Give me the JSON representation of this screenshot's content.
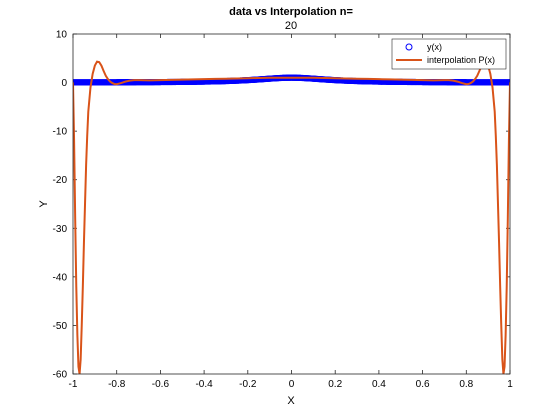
{
  "chart_data": {
    "type": "line",
    "title": "data vs Interpolation n=",
    "subtitle": "20",
    "xlabel": "X",
    "ylabel": "Y",
    "xlim": [
      -1,
      1
    ],
    "ylim": [
      -60,
      10
    ],
    "xticks": [
      "-1",
      "-0.8",
      "-0.6",
      "-0.4",
      "-0.2",
      "0",
      "0.2",
      "0.4",
      "0.6",
      "0.8",
      "1"
    ],
    "yticks": [
      "10",
      "0",
      "-10",
      "-20",
      "-30",
      "-40",
      "-50",
      "-60"
    ],
    "legend_position": "top-right",
    "series": [
      {
        "name": "y(x)",
        "style": "markers",
        "color": "#0000ff",
        "function": "1/(1+25x^2)",
        "x_range": [
          -1,
          1
        ],
        "point_count": 1000
      },
      {
        "name": "interpolation P(x)",
        "style": "line",
        "color": "#d95319",
        "x": [
          -1,
          -0.995,
          -0.99,
          -0.985,
          -0.98,
          -0.975,
          -0.97,
          -0.965,
          -0.96,
          -0.955,
          -0.95,
          -0.945,
          -0.94,
          -0.935,
          -0.93,
          -0.92,
          -0.91,
          -0.9,
          -0.89,
          -0.88,
          -0.87,
          -0.86,
          -0.85,
          -0.84,
          -0.83,
          -0.82,
          -0.81,
          -0.8,
          -0.78,
          -0.76,
          -0.74,
          -0.72,
          -0.7,
          -0.65,
          -0.6,
          -0.55,
          -0.5,
          -0.45,
          -0.4,
          -0.35,
          -0.3,
          -0.25,
          -0.2,
          -0.15,
          -0.1,
          -0.05,
          0,
          0.05,
          0.1,
          0.15,
          0.2,
          0.25,
          0.3,
          0.35,
          0.4,
          0.45,
          0.5,
          0.55,
          0.6,
          0.65,
          0.7,
          0.72,
          0.74,
          0.76,
          0.78,
          0.8,
          0.81,
          0.82,
          0.83,
          0.84,
          0.85,
          0.86,
          0.87,
          0.88,
          0.89,
          0.9,
          0.91,
          0.92,
          0.93,
          0.935,
          0.94,
          0.945,
          0.95,
          0.955,
          0.96,
          0.965,
          0.97,
          0.975,
          0.98,
          0.985,
          0.99,
          0.995,
          1
        ],
        "y": [
          0.04,
          -12,
          -28,
          -42,
          -52,
          -58.5,
          -60,
          -57,
          -50,
          -42,
          -33,
          -25,
          -17,
          -11,
          -6,
          -1,
          1.8,
          3.5,
          4.3,
          4.2,
          3.5,
          2.4,
          1.4,
          0.7,
          0.2,
          -0.1,
          -0.3,
          -0.35,
          -0.1,
          0.2,
          0.4,
          0.5,
          0.5,
          0.45,
          0.5,
          0.55,
          0.6,
          0.65,
          0.7,
          0.75,
          0.8,
          0.85,
          0.9,
          0.95,
          1.0,
          1.0,
          1.0,
          1.0,
          1.0,
          0.95,
          0.9,
          0.85,
          0.8,
          0.75,
          0.7,
          0.65,
          0.6,
          0.55,
          0.5,
          0.45,
          0.5,
          0.5,
          0.4,
          0.2,
          -0.1,
          -0.35,
          -0.3,
          -0.1,
          0.2,
          0.7,
          1.4,
          2.4,
          3.5,
          4.2,
          4.3,
          3.5,
          1.8,
          -1,
          -6,
          -11,
          -17,
          -25,
          -33,
          -42,
          -50,
          -57,
          -60,
          -58.5,
          -52,
          -42,
          -28,
          -12,
          0.04
        ]
      }
    ]
  }
}
